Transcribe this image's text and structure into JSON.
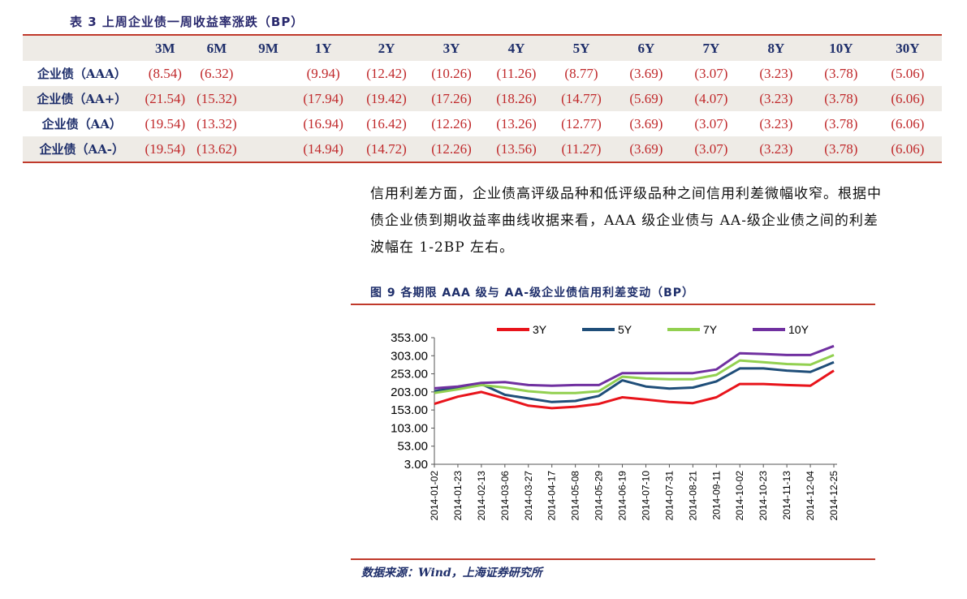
{
  "table": {
    "title": "表 3 上周企业债一周收益率涨跌（BP）",
    "columns": [
      "",
      "3M",
      "6M",
      "9M",
      "1Y",
      "2Y",
      "3Y",
      "4Y",
      "5Y",
      "6Y",
      "7Y",
      "8Y",
      "10Y",
      "30Y"
    ],
    "rows": [
      {
        "label": "企业债（AAA）",
        "cells": [
          "(8.54)",
          "(6.32)",
          "",
          "(9.94)",
          "(12.42)",
          "(10.26)",
          "(11.26)",
          "(8.77)",
          "(3.69)",
          "(3.07)",
          "(3.23)",
          "(3.78)",
          "(5.06)"
        ]
      },
      {
        "label": "企业债（AA+）",
        "cells": [
          "(21.54)",
          "(15.32)",
          "",
          "(17.94)",
          "(19.42)",
          "(17.26)",
          "(18.26)",
          "(14.77)",
          "(5.69)",
          "(4.07)",
          "(3.23)",
          "(3.78)",
          "(6.06)"
        ]
      },
      {
        "label": "企业债（AA）",
        "cells": [
          "(19.54)",
          "(13.32)",
          "",
          "(16.94)",
          "(16.42)",
          "(12.26)",
          "(13.26)",
          "(12.77)",
          "(3.69)",
          "(3.07)",
          "(3.23)",
          "(3.78)",
          "(6.06)"
        ]
      },
      {
        "label": "企业债（AA-）",
        "cells": [
          "(19.54)",
          "(13.62)",
          "",
          "(14.94)",
          "(14.72)",
          "(12.26)",
          "(13.56)",
          "(11.27)",
          "(3.69)",
          "(3.07)",
          "(3.23)",
          "(3.78)",
          "(6.06)"
        ]
      }
    ]
  },
  "paragraph": "信用利差方面，企业债高评级品种和低评级品种之间信用利差微幅收窄。根据中债企业债到期收益率曲线收据来看，AAA 级企业债与 AA-级企业债之间的利差波幅在 1-2BP 左右。",
  "figure": {
    "title": "图 9 各期限 AAA 级与 AA-级企业债信用利差变动（BP）",
    "source": "数据来源：Wind，上海证券研究所"
  },
  "colors": {
    "accent_rule": "#c0392b",
    "negative": "#c0292b",
    "heading": "#1f2f6b"
  },
  "chart_data": {
    "type": "line",
    "title": "",
    "xlabel": "",
    "ylabel": "",
    "ylim": [
      3.0,
      353.0
    ],
    "yticks": [
      "353.00",
      "303.00",
      "253.00",
      "203.00",
      "153.00",
      "103.00",
      "53.00",
      "3.00"
    ],
    "x": [
      "2014-01-02",
      "2014-01-23",
      "2014-02-13",
      "2014-03-06",
      "2014-03-27",
      "2014-04-17",
      "2014-05-08",
      "2014-05-29",
      "2014-06-19",
      "2014-07-10",
      "2014-07-31",
      "2014-08-21",
      "2014-09-11",
      "2014-10-02",
      "2014-10-23",
      "2014-11-13",
      "2014-12-04",
      "2014-12-25"
    ],
    "legend_position": "top",
    "grid": false,
    "series": [
      {
        "name": "3Y",
        "color": "#e8141b",
        "values": [
          170,
          190,
          203,
          185,
          165,
          158,
          162,
          170,
          188,
          182,
          175,
          172,
          188,
          225,
          225,
          222,
          220,
          262
        ]
      },
      {
        "name": "5Y",
        "color": "#1f4e79",
        "values": [
          205,
          215,
          225,
          195,
          185,
          175,
          178,
          192,
          235,
          218,
          212,
          215,
          232,
          268,
          268,
          262,
          258,
          285
        ]
      },
      {
        "name": "7Y",
        "color": "#92d050",
        "values": [
          200,
          210,
          222,
          215,
          205,
          200,
          200,
          205,
          245,
          240,
          238,
          238,
          250,
          290,
          285,
          280,
          278,
          305
        ]
      },
      {
        "name": "10Y",
        "color": "#7030a0",
        "values": [
          213,
          218,
          228,
          230,
          222,
          220,
          222,
          222,
          255,
          255,
          255,
          255,
          265,
          310,
          308,
          305,
          305,
          330
        ]
      }
    ]
  }
}
